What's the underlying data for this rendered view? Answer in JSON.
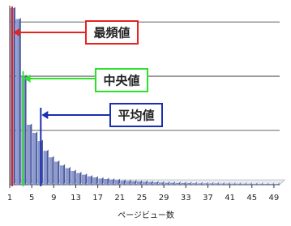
{
  "chart_data": {
    "type": "bar",
    "x_label": "ページビュー数",
    "categories": [
      1,
      null,
      null,
      null,
      5,
      null,
      null,
      null,
      9,
      null,
      null,
      null,
      13,
      null,
      null,
      null,
      17,
      null,
      null,
      null,
      21,
      null,
      null,
      null,
      25,
      null,
      null,
      null,
      29,
      null,
      null,
      null,
      33,
      null,
      null,
      null,
      37,
      null,
      null,
      null,
      41,
      null,
      null,
      null,
      45,
      null,
      null,
      null,
      49
    ],
    "values": [
      3.25,
      3.05,
      2.0,
      1.1,
      0.95,
      0.8,
      0.62,
      0.5,
      0.42,
      0.35,
      0.3,
      0.25,
      0.21,
      0.18,
      0.15,
      0.13,
      0.11,
      0.1,
      0.09,
      0.08,
      0.07,
      0.065,
      0.06,
      0.055,
      0.05,
      0.045,
      0.04,
      0.035,
      0.03,
      0.03,
      0.028,
      0.026,
      0.024,
      0.022,
      0.02,
      0.02,
      0.018,
      0.018,
      0.016,
      0.016,
      0.015,
      0.015,
      0.014,
      0.014,
      0.013,
      0.013,
      0.012,
      0.012,
      0.012
    ],
    "color": "#8e9bd0",
    "ylim": [
      0,
      3.3
    ],
    "yticks": [
      0,
      1,
      2,
      3
    ],
    "grid": true,
    "annotations": [
      {
        "text": "最頻値",
        "x": 1,
        "color": "#e8231f"
      },
      {
        "text": "中央値",
        "x": 3,
        "color": "#2ee02e"
      },
      {
        "text": "平均値",
        "x": 6.2,
        "color": "#1a2fb0"
      }
    ]
  }
}
